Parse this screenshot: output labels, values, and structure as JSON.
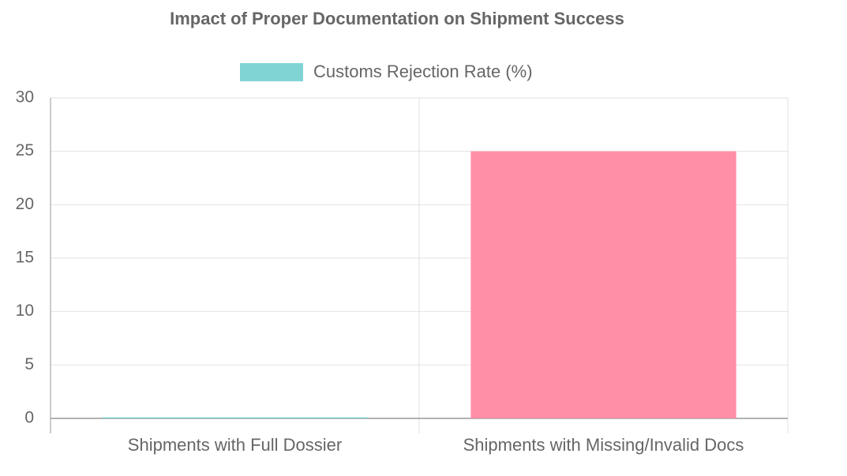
{
  "chart_data": {
    "type": "bar",
    "title": "Impact of Proper Documentation on Shipment Success",
    "categories": [
      "Shipments with Full Dossier",
      "Shipments with Missing/Invalid Docs"
    ],
    "series": [
      {
        "name": "Customs Rejection Rate (%)",
        "color": "#80d4d4",
        "colors": [
          "#80d4d4",
          "#ff8fa6"
        ],
        "values": [
          0.1,
          25
        ]
      }
    ],
    "ylim": [
      0,
      30
    ],
    "yticks": [
      0,
      5,
      10,
      15,
      20,
      25,
      30
    ],
    "grid": true,
    "legend": "top"
  }
}
